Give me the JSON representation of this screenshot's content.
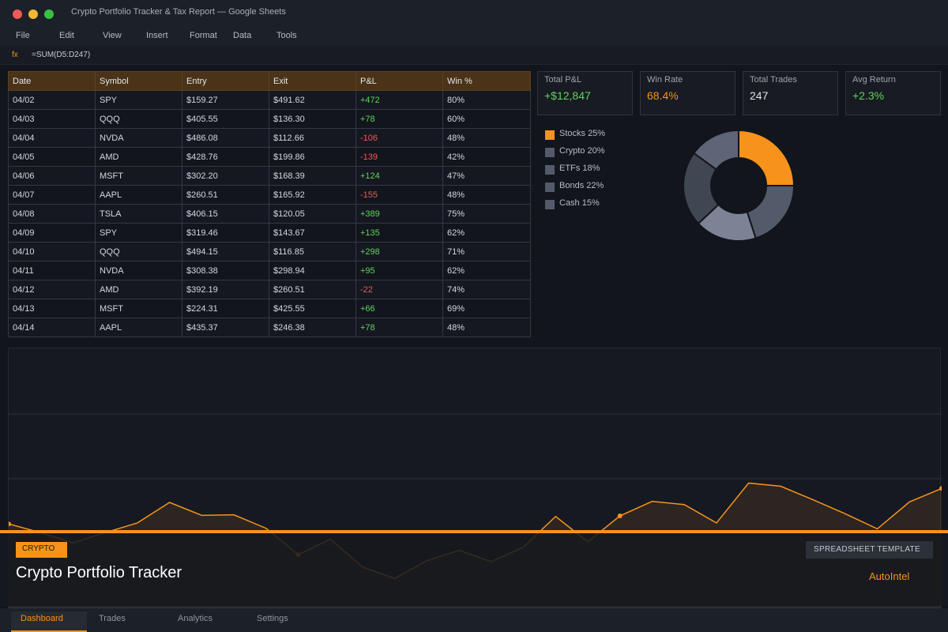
{
  "window": {
    "title": "Crypto Portfolio Tracker & Tax Report — Google Sheets"
  },
  "menu": [
    "File",
    "Edit",
    "View",
    "Insert",
    "Format",
    "Data",
    "Tools"
  ],
  "formula_bar": {
    "fx_label": "fx",
    "formula": "=SUM(D5:D247)"
  },
  "table": {
    "headers": [
      "Date",
      "Symbol",
      "Entry",
      "Exit",
      "P&L",
      "Win %"
    ],
    "rows": [
      [
        "04/02",
        "SPY",
        "$159.27",
        "$491.62",
        "+472",
        "80%"
      ],
      [
        "04/03",
        "QQQ",
        "$405.55",
        "$136.30",
        "+78",
        "60%"
      ],
      [
        "04/04",
        "NVDA",
        "$486.08",
        "$112.66",
        "-106",
        "48%"
      ],
      [
        "04/05",
        "AMD",
        "$428.76",
        "$199.86",
        "-139",
        "42%"
      ],
      [
        "04/06",
        "MSFT",
        "$302.20",
        "$168.39",
        "+124",
        "47%"
      ],
      [
        "04/07",
        "AAPL",
        "$260.51",
        "$165.92",
        "-155",
        "48%"
      ],
      [
        "04/08",
        "TSLA",
        "$406.15",
        "$120.05",
        "+389",
        "75%"
      ],
      [
        "04/09",
        "SPY",
        "$319.46",
        "$143.67",
        "+135",
        "62%"
      ],
      [
        "04/10",
        "QQQ",
        "$494.15",
        "$116.85",
        "+298",
        "71%"
      ],
      [
        "04/11",
        "NVDA",
        "$308.38",
        "$298.94",
        "+95",
        "62%"
      ],
      [
        "04/12",
        "AMD",
        "$392.19",
        "$260.51",
        "-22",
        "74%"
      ],
      [
        "04/13",
        "MSFT",
        "$224.31",
        "$425.55",
        "+66",
        "69%"
      ],
      [
        "04/14",
        "AAPL",
        "$435.37",
        "$246.38",
        "+78",
        "48%"
      ]
    ]
  },
  "stats": [
    {
      "label": "Total P&L",
      "value": "+$12,847",
      "tone": "green"
    },
    {
      "label": "Win Rate",
      "value": "68.4%",
      "tone": "orange"
    },
    {
      "label": "Total Trades",
      "value": "247",
      "tone": "white"
    },
    {
      "label": "Avg Return",
      "value": "+2.3%",
      "tone": "green"
    }
  ],
  "colors": {
    "accent": "#f7931a",
    "positive": "#5fd35f",
    "negative": "#f05a5a",
    "crypto": "#535a69",
    "etfs": "#7b8394",
    "bonds": "#404652",
    "cash": "#5d6577"
  },
  "chart_data": [
    {
      "type": "pie",
      "labels": [
        "Stocks",
        "Crypto",
        "ETFs",
        "Bonds",
        "Cash"
      ],
      "legend": [
        "Stocks 25%",
        "Crypto 20%",
        "ETFs 18%",
        "Bonds 22%",
        "Cash 15%"
      ],
      "values": [
        25,
        20,
        18,
        22,
        15
      ],
      "colors": [
        "#f7931a",
        "#535a69",
        "#7b8394",
        "#404652",
        "#5d6577"
      ],
      "donut": true,
      "legend_position": "left"
    },
    {
      "type": "area",
      "x": [
        1,
        2,
        3,
        4,
        5,
        6,
        7,
        8,
        9,
        10,
        11,
        12,
        13,
        14,
        15,
        16,
        17,
        18,
        19,
        20,
        21,
        22,
        23,
        24,
        25,
        26,
        27,
        28,
        29,
        30
      ],
      "values": [
        58,
        42,
        23,
        42,
        60,
        98,
        74,
        75,
        50,
        1,
        30,
        -22,
        -43,
        -10,
        9,
        -12,
        15,
        72,
        25,
        73,
        100,
        94,
        60,
        134,
        128,
        103,
        77,
        49,
        99,
        124
      ],
      "markers_at_x": [
        1,
        10,
        20,
        30
      ],
      "ylim": [
        -100,
        384
      ],
      "grid": true,
      "color": "#f7931a"
    }
  ],
  "banner": {
    "tag": "CRYPTO",
    "title": "Crypto Portfolio Tracker",
    "badge": "SPREADSHEET TEMPLATE",
    "brand": "AutoIntel"
  },
  "tabs": [
    "Dashboard",
    "Trades",
    "Analytics",
    "Settings"
  ]
}
